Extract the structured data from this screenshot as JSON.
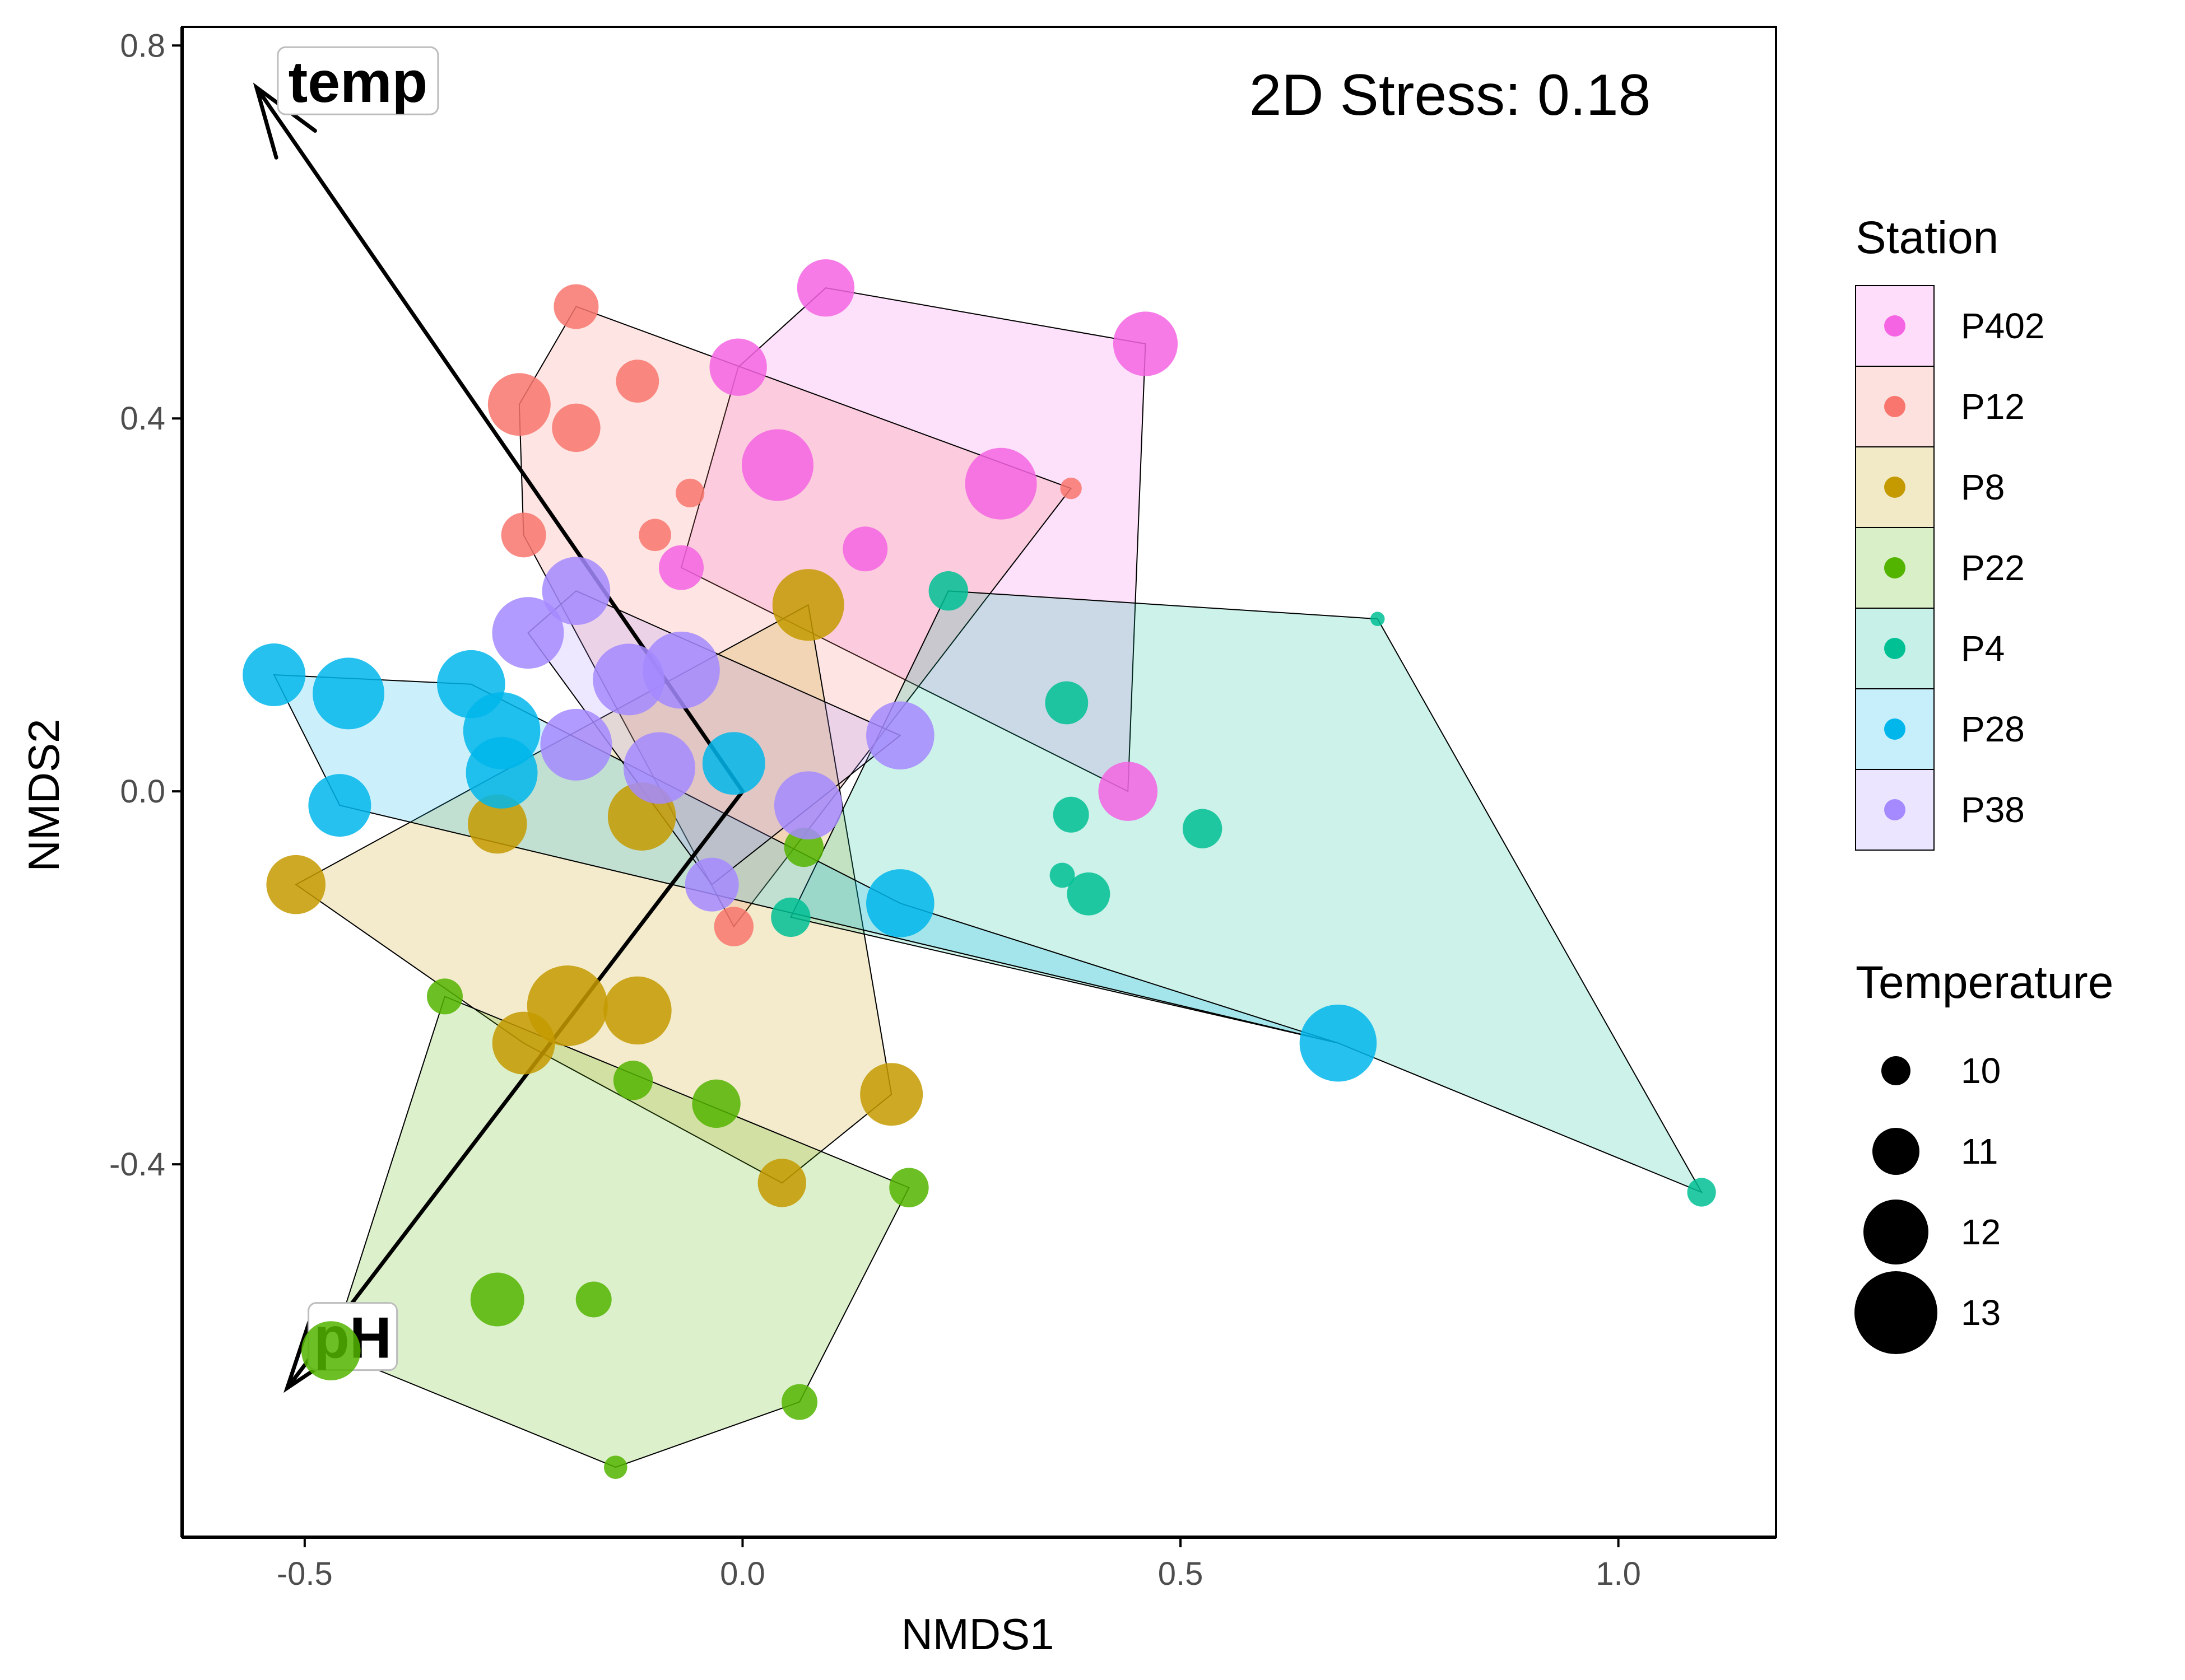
{
  "chart_data": {
    "type": "scatter",
    "xlabel": "NMDS1",
    "ylabel": "NMDS2",
    "xlim": [
      -0.64,
      1.18
    ],
    "ylim": [
      -0.8,
      0.82
    ],
    "x_ticks": [
      -0.5,
      0.0,
      0.5,
      1.0
    ],
    "x_tick_labels": [
      "-0.5",
      "0.0",
      "0.5",
      "1.0"
    ],
    "y_ticks": [
      -0.4,
      0.0,
      0.4,
      0.8
    ],
    "y_tick_labels": [
      "-0.4",
      "0.0",
      "0.4",
      "0.8"
    ],
    "grid": false,
    "annotation": "2D Stress: 0.18",
    "vectors": [
      {
        "label": "temp",
        "x": -0.555,
        "y": 0.755
      },
      {
        "label": "pH",
        "x": -0.52,
        "y": -0.64
      }
    ],
    "legend_station": {
      "title": "Station",
      "placement": "right",
      "entries": [
        "P402",
        "P12",
        "P8",
        "P22",
        "P4",
        "P28",
        "P38"
      ]
    },
    "legend_temperature": {
      "title": "Temperature",
      "placement": "right",
      "entries": [
        10,
        11,
        12,
        13
      ]
    },
    "series": [
      {
        "name": "P402",
        "color": "#F564E3",
        "hull": [
          [
            0.095,
            0.54
          ],
          [
            0.46,
            0.48
          ],
          [
            0.44,
            0.0
          ],
          [
            -0.07,
            0.24
          ],
          [
            -0.005,
            0.455
          ]
        ],
        "points": [
          [
            0.095,
            0.54,
            12.2
          ],
          [
            0.46,
            0.48,
            12.6
          ],
          [
            -0.005,
            0.455,
            12.2
          ],
          [
            0.04,
            0.35,
            13.0
          ],
          [
            0.295,
            0.33,
            13.0
          ],
          [
            0.14,
            0.26,
            11.5
          ],
          [
            -0.07,
            0.24,
            11.5
          ],
          [
            0.44,
            0.0,
            12.3
          ]
        ]
      },
      {
        "name": "P12",
        "color": "#F8766D",
        "hull": [
          [
            -0.19,
            0.52
          ],
          [
            0.375,
            0.325
          ],
          [
            -0.01,
            -0.145
          ],
          [
            -0.25,
            0.275
          ],
          [
            -0.255,
            0.415
          ]
        ],
        "points": [
          [
            -0.19,
            0.52,
            11.5
          ],
          [
            -0.12,
            0.44,
            11.4
          ],
          [
            -0.255,
            0.415,
            12.5
          ],
          [
            -0.19,
            0.39,
            11.7
          ],
          [
            -0.06,
            0.32,
            10.6
          ],
          [
            -0.1,
            0.275,
            10.8
          ],
          [
            -0.25,
            0.275,
            11.5
          ],
          [
            0.375,
            0.325,
            10.2
          ],
          [
            -0.01,
            -0.145,
            11.2
          ]
        ]
      },
      {
        "name": "P8",
        "color": "#C49A00",
        "hull": [
          [
            0.075,
            0.2
          ],
          [
            0.17,
            -0.325
          ],
          [
            0.045,
            -0.42
          ],
          [
            -0.25,
            -0.27
          ],
          [
            -0.51,
            -0.1
          ]
        ],
        "points": [
          [
            0.075,
            0.2,
            13.0
          ],
          [
            -0.28,
            -0.035,
            12.3
          ],
          [
            -0.115,
            -0.027,
            12.8
          ],
          [
            -0.51,
            -0.1,
            12.3
          ],
          [
            -0.2,
            -0.23,
            13.5
          ],
          [
            -0.12,
            -0.235,
            12.8
          ],
          [
            -0.25,
            -0.27,
            12.5
          ],
          [
            0.17,
            -0.325,
            12.5
          ],
          [
            0.045,
            -0.42,
            11.7
          ]
        ]
      },
      {
        "name": "P22",
        "color": "#53B400",
        "hull": [
          [
            -0.34,
            -0.22
          ],
          [
            0.19,
            -0.425
          ],
          [
            0.065,
            -0.655
          ],
          [
            -0.145,
            -0.725
          ],
          [
            -0.47,
            -0.6
          ]
        ],
        "points": [
          [
            0.07,
            -0.06,
            11.2
          ],
          [
            -0.34,
            -0.22,
            11.0
          ],
          [
            -0.125,
            -0.31,
            11.2
          ],
          [
            -0.03,
            -0.335,
            11.7
          ],
          [
            0.19,
            -0.425,
            11.2
          ],
          [
            -0.28,
            -0.545,
            12.0
          ],
          [
            -0.17,
            -0.545,
            11.0
          ],
          [
            0.065,
            -0.655,
            11.0
          ],
          [
            -0.145,
            -0.725,
            10.3
          ],
          [
            -0.47,
            -0.6,
            12.3
          ]
        ]
      },
      {
        "name": "P4",
        "color": "#00C094",
        "hull": [
          [
            0.235,
            0.215
          ],
          [
            0.725,
            0.185
          ],
          [
            1.095,
            -0.43
          ],
          [
            0.68,
            -0.27
          ],
          [
            0.055,
            -0.135
          ]
        ],
        "points": [
          [
            0.235,
            0.215,
            11.2
          ],
          [
            0.725,
            0.185,
            9.8
          ],
          [
            0.37,
            0.095,
            11.4
          ],
          [
            0.375,
            -0.025,
            11.0
          ],
          [
            0.525,
            -0.04,
            11.2
          ],
          [
            0.365,
            -0.09,
            10.4
          ],
          [
            0.395,
            -0.11,
            11.4
          ],
          [
            0.055,
            -0.135,
            11.2
          ],
          [
            1.095,
            -0.43,
            10.6
          ]
        ]
      },
      {
        "name": "P28",
        "color": "#00B6EB",
        "hull": [
          [
            -0.535,
            0.125
          ],
          [
            -0.31,
            0.115
          ],
          [
            0.18,
            -0.12
          ],
          [
            0.68,
            -0.27
          ],
          [
            -0.46,
            -0.015
          ]
        ],
        "points": [
          [
            -0.535,
            0.125,
            12.5
          ],
          [
            -0.45,
            0.105,
            13.0
          ],
          [
            -0.31,
            0.115,
            12.8
          ],
          [
            -0.275,
            0.065,
            13.3
          ],
          [
            -0.275,
            0.02,
            13.0
          ],
          [
            -0.46,
            -0.015,
            12.5
          ],
          [
            -0.01,
            0.03,
            12.5
          ],
          [
            0.18,
            -0.12,
            12.8
          ],
          [
            0.68,
            -0.27,
            13.3
          ]
        ]
      },
      {
        "name": "P38",
        "color": "#A58AFF",
        "hull": [
          [
            -0.19,
            0.215
          ],
          [
            0.18,
            0.06
          ],
          [
            -0.035,
            -0.1
          ],
          [
            -0.245,
            0.17
          ]
        ],
        "points": [
          [
            -0.19,
            0.215,
            12.8
          ],
          [
            -0.245,
            0.17,
            13.0
          ],
          [
            -0.13,
            0.12,
            13.0
          ],
          [
            -0.07,
            0.13,
            13.3
          ],
          [
            0.18,
            0.06,
            12.8
          ],
          [
            -0.19,
            0.05,
            13.0
          ],
          [
            -0.095,
            0.025,
            13.0
          ],
          [
            0.075,
            -0.015,
            12.8
          ],
          [
            -0.035,
            -0.1,
            12.0
          ]
        ]
      }
    ]
  }
}
